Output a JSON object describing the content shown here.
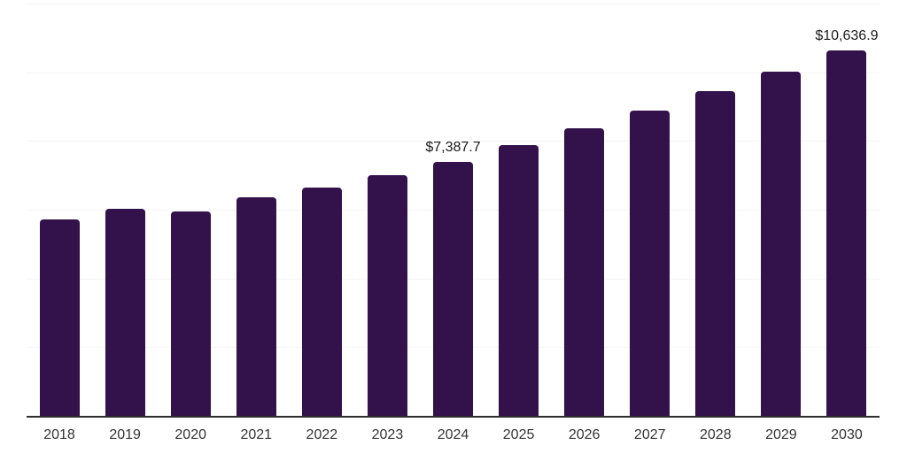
{
  "chart_data": {
    "type": "bar",
    "title": "",
    "xlabel": "",
    "ylabel": "",
    "categories": [
      "2018",
      "2019",
      "2020",
      "2021",
      "2022",
      "2023",
      "2024",
      "2025",
      "2026",
      "2027",
      "2028",
      "2029",
      "2030"
    ],
    "values": [
      5720,
      6020,
      5950,
      6360,
      6640,
      7000,
      7387.7,
      7880,
      8370,
      8880,
      9450,
      10020,
      10636.9
    ],
    "bar_labels": [
      "",
      "",
      "",
      "",
      "",
      "",
      "$7,387.7",
      "",
      "",
      "",
      "",
      "",
      "$10,636.9"
    ],
    "ylim": [
      0,
      12000
    ],
    "grid": true,
    "grid_interval": 2000,
    "legend_position": "none",
    "colors": {
      "bar": "#33114a",
      "gridline": "#f5f5f5",
      "axis_line": "#2e2e2e",
      "tick_label": "#333333",
      "data_label": "#1a1a1a",
      "background": "#ffffff"
    }
  }
}
